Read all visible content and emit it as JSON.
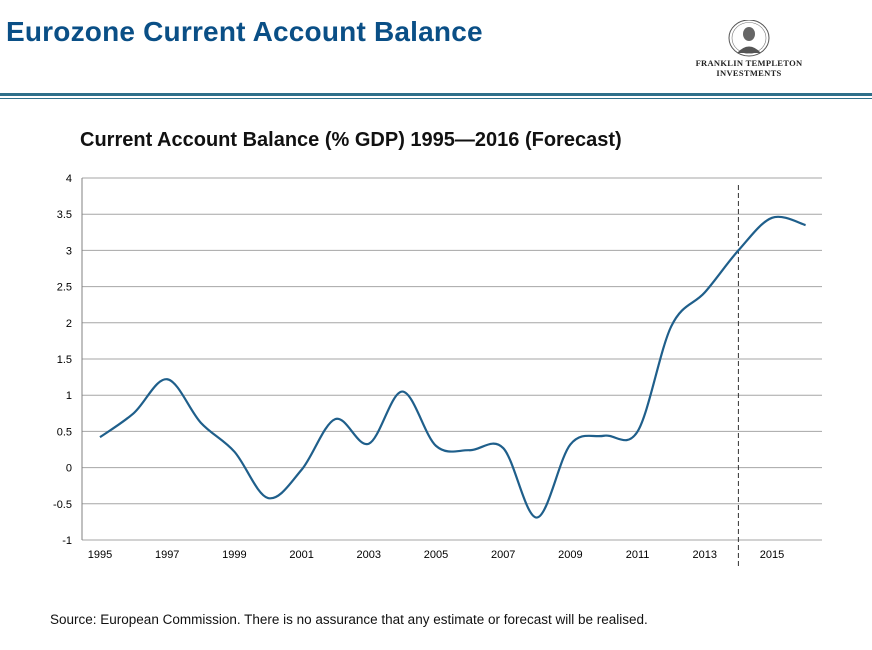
{
  "header": {
    "title": "Eurozone Current Account Balance",
    "logo_line1": "FRANKLIN TEMPLETON",
    "logo_line2": "INVESTMENTS"
  },
  "footer": {
    "source": "Source: European Commission. There is no assurance that any estimate or forecast will be realised."
  },
  "colors": {
    "title": "#0a4f86",
    "line": "#1f5f8b",
    "rule": "#2e6f8a",
    "grid": "#a6a6a6"
  },
  "chart_data": {
    "type": "line",
    "title": "Current Account Balance (% GDP) 1995—2016 (Forecast)",
    "xlabel": "",
    "ylabel": "",
    "ylim": [
      -1,
      4
    ],
    "xlim": [
      1995,
      2016
    ],
    "yticks": [
      "4",
      "3.5",
      "3",
      "2.5",
      "2",
      "1.5",
      "1",
      "0.5",
      "0",
      "-0.5",
      "-1"
    ],
    "xticks": [
      "1995",
      "1997",
      "1999",
      "2001",
      "2003",
      "2005",
      "2007",
      "2009",
      "2011",
      "2013",
      "2015"
    ],
    "grid": true,
    "legend": "none",
    "forecast_start_year": 2014,
    "series": [
      {
        "x": [
          1995,
          1996,
          1997,
          1998,
          1999,
          2000,
          2001,
          2002,
          2003,
          2004,
          2005,
          2006,
          2007,
          2008,
          2009,
          2010,
          2011,
          2012,
          2013,
          2014,
          2015,
          2016
        ],
        "values": [
          0.42,
          0.75,
          1.22,
          0.62,
          0.22,
          -0.42,
          -0.03,
          0.67,
          0.33,
          1.05,
          0.3,
          0.24,
          0.27,
          -0.69,
          0.32,
          0.44,
          0.5,
          1.95,
          2.42,
          3.0,
          3.45,
          3.35
        ]
      }
    ]
  }
}
